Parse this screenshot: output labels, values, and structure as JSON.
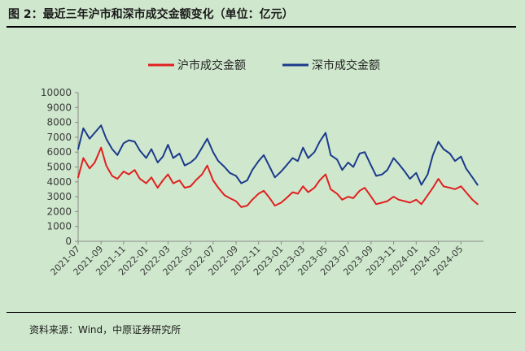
{
  "figure": {
    "title": "图 2：最近三年沪市和深市成交金额变化（单位：亿元）",
    "source": "资料来源：Wind，中原证券研究所"
  },
  "colors": {
    "sh": "#e02020",
    "sz": "#1c3a8c",
    "axis": "#888888"
  },
  "chart_data": {
    "type": "line",
    "title": "",
    "xlabel": "",
    "ylabel": "",
    "ylim": [
      0,
      10000
    ],
    "yticks": [
      0,
      1000,
      2000,
      3000,
      4000,
      5000,
      6000,
      7000,
      8000,
      9000,
      10000
    ],
    "xlim": [
      "2021-07-01",
      "2024-07-01"
    ],
    "xticks": [
      "2021-07",
      "2021-09",
      "2021-11",
      "2022-01",
      "2022-03",
      "2022-05",
      "2022-07",
      "2022-09",
      "2022-11",
      "2023-01",
      "2023-03",
      "2023-05",
      "2023-07",
      "2023-09",
      "2023-11",
      "2024-01",
      "2024-03",
      "2024-05"
    ],
    "grid": false,
    "legend": "top-center",
    "series": [
      {
        "name": "沪市成交金额",
        "x": [
          "2021-07-01",
          "2021-07-15",
          "2021-08-01",
          "2021-08-15",
          "2021-09-01",
          "2021-09-15",
          "2021-10-01",
          "2021-10-15",
          "2021-11-01",
          "2021-11-15",
          "2021-12-01",
          "2021-12-15",
          "2022-01-01",
          "2022-01-15",
          "2022-02-01",
          "2022-02-15",
          "2022-03-01",
          "2022-03-15",
          "2022-04-01",
          "2022-04-15",
          "2022-05-01",
          "2022-05-15",
          "2022-06-01",
          "2022-06-15",
          "2022-07-01",
          "2022-07-15",
          "2022-08-01",
          "2022-08-15",
          "2022-09-01",
          "2022-09-15",
          "2022-10-01",
          "2022-10-15",
          "2022-11-01",
          "2022-11-15",
          "2022-12-01",
          "2022-12-15",
          "2023-01-01",
          "2023-01-15",
          "2023-02-01",
          "2023-02-15",
          "2023-03-01",
          "2023-03-15",
          "2023-04-01",
          "2023-04-15",
          "2023-05-01",
          "2023-05-15",
          "2023-06-01",
          "2023-06-15",
          "2023-07-01",
          "2023-07-15",
          "2023-08-01",
          "2023-08-15",
          "2023-09-01",
          "2023-09-15",
          "2023-10-01",
          "2023-10-15",
          "2023-11-01",
          "2023-11-15",
          "2023-12-01",
          "2023-12-15",
          "2024-01-01",
          "2024-01-15",
          "2024-02-01",
          "2024-02-15",
          "2024-03-01",
          "2024-03-15",
          "2024-04-01",
          "2024-04-15",
          "2024-05-01",
          "2024-05-15",
          "2024-06-01",
          "2024-06-15"
        ],
        "values": [
          4300,
          5600,
          4900,
          5300,
          6300,
          5100,
          4400,
          4200,
          4700,
          4500,
          4800,
          4200,
          3900,
          4300,
          3600,
          4100,
          4500,
          3900,
          4100,
          3600,
          3700,
          4100,
          4500,
          5100,
          4100,
          3600,
          3100,
          2900,
          2700,
          2300,
          2400,
          2800,
          3200,
          3400,
          2900,
          2400,
          2600,
          2900,
          3300,
          3200,
          3700,
          3300,
          3600,
          4100,
          4500,
          3500,
          3200,
          2800,
          3000,
          2900,
          3400,
          3600,
          3000,
          2500,
          2600,
          2700,
          3000,
          2800,
          2700,
          2600,
          2800,
          2500,
          3100,
          3600,
          4200,
          3700,
          3600,
          3500,
          3700,
          3300,
          2800,
          2500
        ]
      },
      {
        "name": "深市成交金额",
        "x": [
          "2021-07-01",
          "2021-07-15",
          "2021-08-01",
          "2021-08-15",
          "2021-09-01",
          "2021-09-15",
          "2021-10-01",
          "2021-10-15",
          "2021-11-01",
          "2021-11-15",
          "2021-12-01",
          "2021-12-15",
          "2022-01-01",
          "2022-01-15",
          "2022-02-01",
          "2022-02-15",
          "2022-03-01",
          "2022-03-15",
          "2022-04-01",
          "2022-04-15",
          "2022-05-01",
          "2022-05-15",
          "2022-06-01",
          "2022-06-15",
          "2022-07-01",
          "2022-07-15",
          "2022-08-01",
          "2022-08-15",
          "2022-09-01",
          "2022-09-15",
          "2022-10-01",
          "2022-10-15",
          "2022-11-01",
          "2022-11-15",
          "2022-12-01",
          "2022-12-15",
          "2023-01-01",
          "2023-01-15",
          "2023-02-01",
          "2023-02-15",
          "2023-03-01",
          "2023-03-15",
          "2023-04-01",
          "2023-04-15",
          "2023-05-01",
          "2023-05-15",
          "2023-06-01",
          "2023-06-15",
          "2023-07-01",
          "2023-07-15",
          "2023-08-01",
          "2023-08-15",
          "2023-09-01",
          "2023-09-15",
          "2023-10-01",
          "2023-10-15",
          "2023-11-01",
          "2023-11-15",
          "2023-12-01",
          "2023-12-15",
          "2024-01-01",
          "2024-01-15",
          "2024-02-01",
          "2024-02-15",
          "2024-03-01",
          "2024-03-15",
          "2024-04-01",
          "2024-04-15",
          "2024-05-01",
          "2024-05-15",
          "2024-06-01",
          "2024-06-15"
        ],
        "values": [
          6200,
          7600,
          6900,
          7300,
          7800,
          6900,
          6200,
          5800,
          6600,
          6800,
          6700,
          6100,
          5600,
          6200,
          5300,
          5700,
          6500,
          5600,
          5900,
          5100,
          5300,
          5600,
          6300,
          6900,
          6000,
          5400,
          5000,
          4600,
          4400,
          3900,
          4100,
          4800,
          5400,
          5800,
          5000,
          4300,
          4700,
          5100,
          5600,
          5400,
          6300,
          5600,
          6000,
          6700,
          7300,
          5800,
          5500,
          4800,
          5300,
          5000,
          5900,
          6000,
          5100,
          4400,
          4500,
          4800,
          5600,
          5200,
          4700,
          4200,
          4600,
          3800,
          4500,
          5800,
          6700,
          6200,
          5900,
          5400,
          5700,
          4900,
          4300,
          3800
        ]
      }
    ]
  }
}
